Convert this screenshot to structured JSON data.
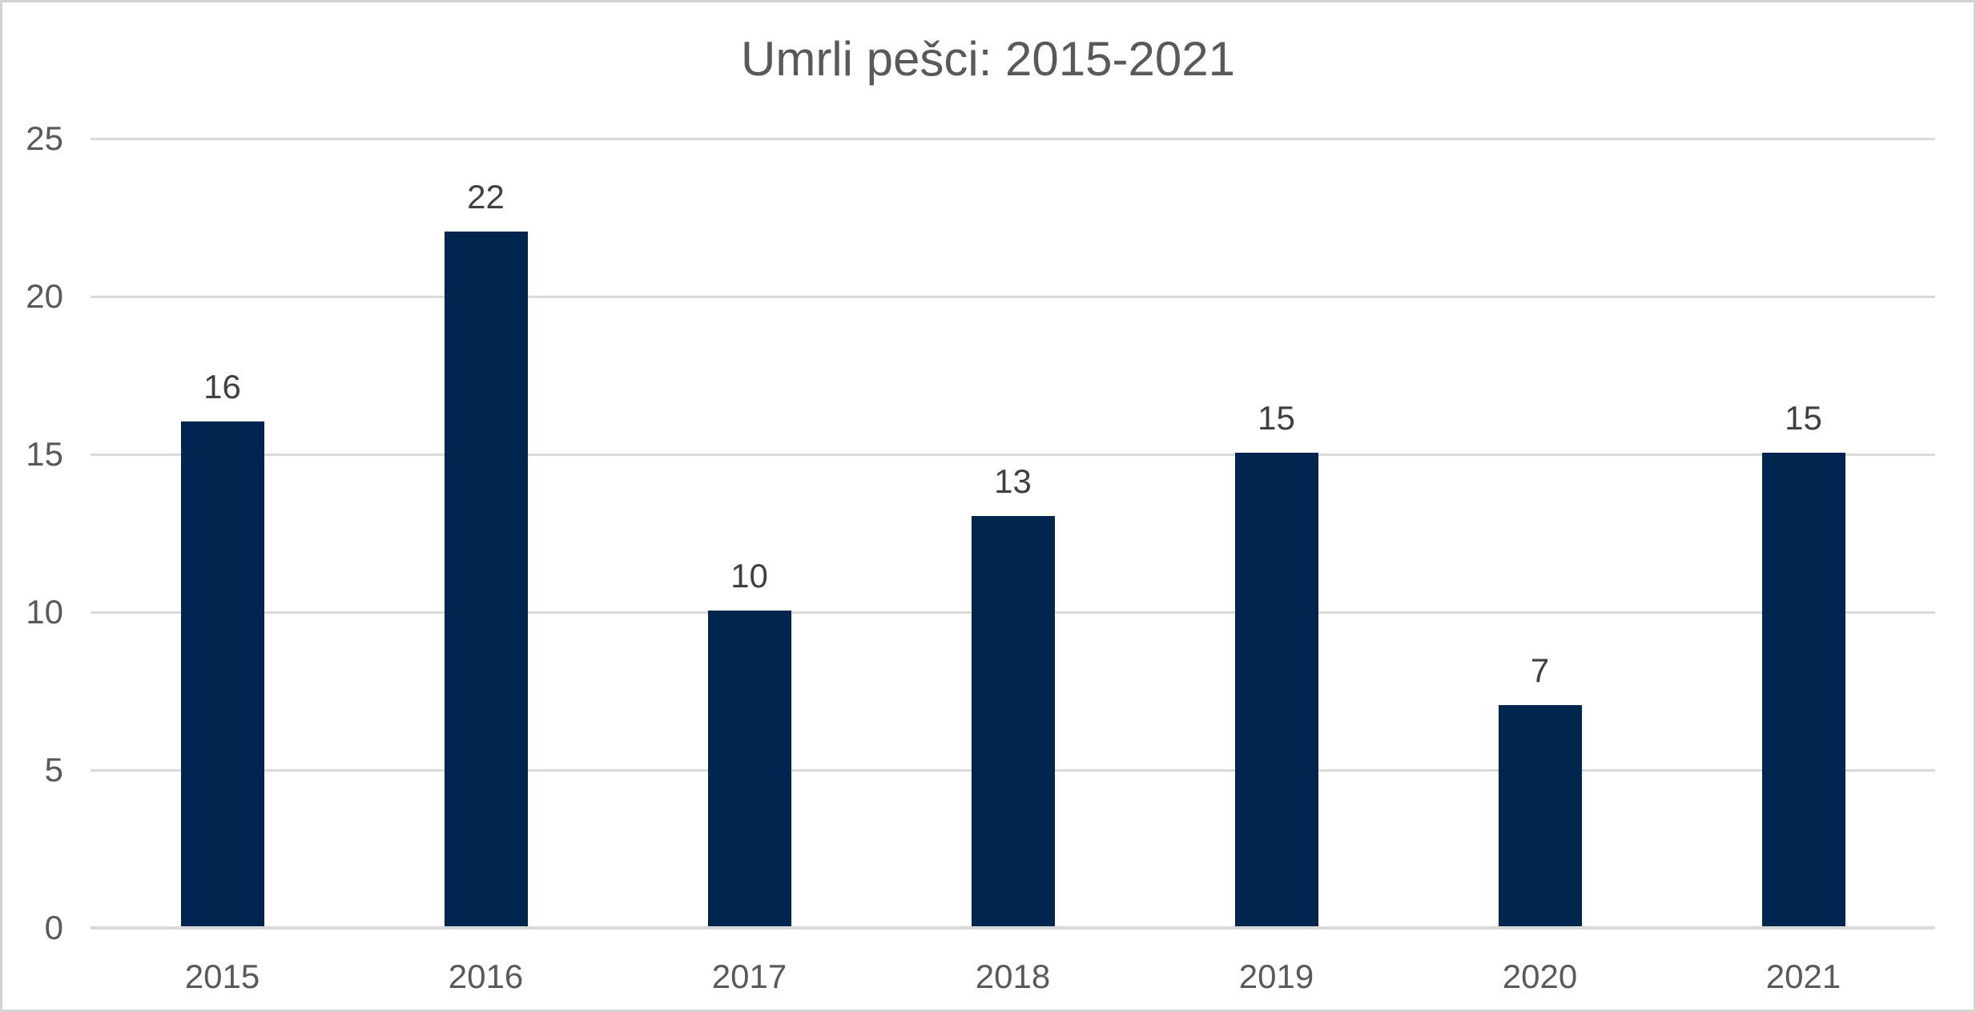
{
  "chart_data": {
    "type": "bar",
    "title": "Umrli pešci: 2015-2021",
    "categories": [
      "2015",
      "2016",
      "2017",
      "2018",
      "2019",
      "2020",
      "2021"
    ],
    "values": [
      16,
      22,
      10,
      13,
      15,
      7,
      15
    ],
    "series_count": 1,
    "xlabel": "",
    "ylabel": "",
    "ylim": [
      0,
      25
    ],
    "yticks": [
      0,
      5,
      10,
      15,
      20,
      25
    ],
    "grid": "horizontal gridlines on",
    "legend": "none",
    "data_labels_shown": true,
    "colors": {
      "bar": "#00254E",
      "gridline": "#D9D9D9",
      "axis_line": "#D9D9D9",
      "title_text": "#595959",
      "tick_text": "#595959",
      "data_label_text": "#404040",
      "background": "#FFFFFF",
      "frame_border": "#D3D3D3"
    }
  }
}
